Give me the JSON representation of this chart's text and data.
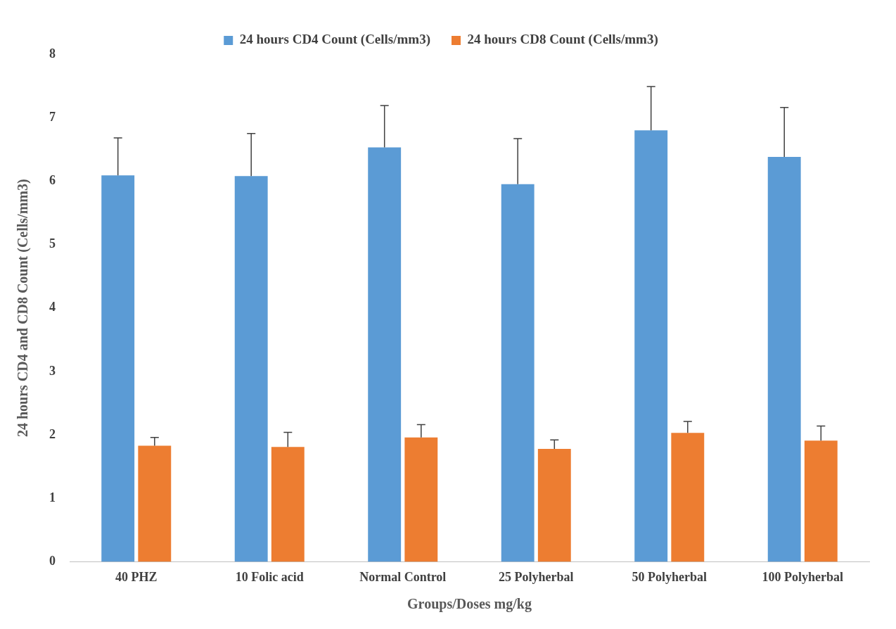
{
  "chart_data": {
    "type": "bar",
    "xlabel": "Groups/Doses mg/kg",
    "ylabel": "24 hours CD4 and CD8 Count (Cells/mm3)",
    "categories": [
      "40 PHZ",
      "10 Folic acid",
      "Normal Control",
      "25 Polyherbal",
      "50 Polyherbal",
      "100 Polyherbal"
    ],
    "series": [
      {
        "name": "24 hours CD4 Count (Cells/mm3)",
        "color": "#5b9bd5",
        "values": [
          6.09,
          6.08,
          6.53,
          5.95,
          6.8,
          6.38
        ],
        "errors": [
          [
            6.09,
            6.68
          ],
          [
            6.08,
            6.75
          ],
          [
            6.53,
            7.19
          ],
          [
            5.95,
            6.67
          ],
          [
            6.8,
            7.49
          ],
          [
            6.38,
            7.16
          ]
        ]
      },
      {
        "name": "24 hours CD8 Count (Cells/mm3)",
        "color": "#ed7d31",
        "values": [
          1.83,
          1.81,
          1.96,
          1.78,
          2.03,
          1.91
        ],
        "errors": [
          [
            1.83,
            1.96
          ],
          [
            1.81,
            2.04
          ],
          [
            1.96,
            2.16
          ],
          [
            1.78,
            1.92
          ],
          [
            2.03,
            2.21
          ],
          [
            1.91,
            2.14
          ]
        ]
      }
    ],
    "ylim": [
      0,
      8
    ],
    "yticks": [
      0,
      1,
      2,
      3,
      4,
      5,
      6,
      7,
      8
    ],
    "grid": false,
    "legend": "top"
  }
}
